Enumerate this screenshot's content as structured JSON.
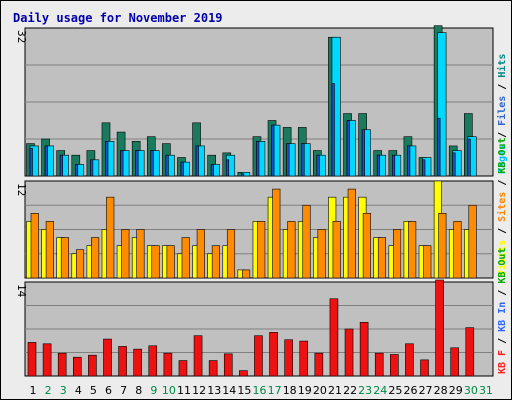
{
  "chart_data": {
    "type": "bar",
    "title": "Daily usage for November 2019",
    "categories": [
      "1",
      "2",
      "3",
      "4",
      "5",
      "6",
      "7",
      "8",
      "9",
      "10",
      "11",
      "12",
      "13",
      "14",
      "15",
      "16",
      "17",
      "18",
      "19",
      "20",
      "21",
      "22",
      "23",
      "24",
      "25",
      "26",
      "27",
      "28",
      "29",
      "30",
      "31"
    ],
    "weekend_days": [
      "2",
      "3",
      "9",
      "10",
      "16",
      "17",
      "23",
      "24",
      "30",
      "31"
    ],
    "panels": [
      {
        "name": "top",
        "ymax": 32,
        "ymax_label": "32",
        "side_label_parts": [
          {
            "text": "Pages",
            "color": "#00bfff"
          },
          {
            "text": " / ",
            "color": "#000000"
          },
          {
            "text": "Files",
            "color": "#3366cc"
          },
          {
            "text": " / ",
            "color": "#000000"
          },
          {
            "text": "Hits",
            "color": "#008888"
          }
        ],
        "series": [
          {
            "name": "Hits",
            "color": "#1a7a5e",
            "values": [
              7,
              8,
              5.5,
              4.5,
              5.5,
              11.5,
              9.5,
              7.5,
              8.5,
              7,
              4,
              11.5,
              4.5,
              5,
              0.8,
              8.5,
              12,
              10.5,
              10.5,
              5.5,
              30,
              13.5,
              13.5,
              5.5,
              5.5,
              8.5,
              4,
              32.5,
              6.5,
              13.5,
              null
            ]
          },
          {
            "name": "Files",
            "color": "#1f4fcf",
            "values": [
              6,
              6.5,
              4.5,
              2.5,
              3.5,
              7.5,
              5.5,
              5.5,
              5.5,
              4.5,
              3,
              6.5,
              2.5,
              3.5,
              0.5,
              7.5,
              11,
              7,
              7,
              4.5,
              20,
              12,
              10,
              4.5,
              4.5,
              6.5,
              3.5,
              12.5,
              5,
              8,
              null
            ]
          },
          {
            "name": "Pages",
            "color": "#00d8ff",
            "values": [
              6.5,
              6.5,
              4.5,
              2.5,
              3.5,
              7.5,
              5.5,
              5.5,
              5.5,
              4.5,
              3,
              6.5,
              2.5,
              4.5,
              0.8,
              7.5,
              11,
              7,
              7,
              4.5,
              30,
              12,
              10,
              4.5,
              4.5,
              6.5,
              4,
              31,
              5.5,
              8.5,
              null
            ]
          }
        ]
      },
      {
        "name": "middle",
        "ymax": 12,
        "ymax_label": "12",
        "side_label_parts": [
          {
            "text": "Visits",
            "color": "#ffff00"
          },
          {
            "text": " / ",
            "color": "#000000"
          },
          {
            "text": "Sites",
            "color": "#ff8800"
          },
          {
            "text": " / ",
            "color": "#000000"
          },
          {
            "text": "KB Out",
            "color": "#00aa00"
          }
        ],
        "series": [
          {
            "name": "Visits",
            "color": "#ffff00",
            "values": [
              7,
              6,
              5,
              3,
              4,
              6,
              4,
              5,
              4,
              4,
              3,
              4,
              3,
              4,
              1,
              7,
              10,
              6,
              7,
              5,
              10,
              10,
              10,
              5,
              4,
              7,
              4,
              12,
              6,
              6,
              null
            ]
          },
          {
            "name": "Sites",
            "color": "#ff8c00",
            "values": [
              8,
              7,
              5,
              3.5,
              5,
              10,
              6,
              6,
              4,
              4,
              5,
              6,
              4,
              6,
              1,
              7,
              11,
              7,
              9,
              6,
              7,
              11,
              8,
              5,
              6,
              7,
              4,
              8,
              7,
              9,
              null
            ]
          }
        ]
      },
      {
        "name": "bottom",
        "ymax": 14,
        "ymax_label": "14",
        "side_label_parts": [
          {
            "text": "KB F",
            "color": "#ff2222"
          },
          {
            "text": " / ",
            "color": "#000000"
          },
          {
            "text": "KB In",
            "color": "#3366ff"
          },
          {
            "text": " / ",
            "color": "#000000"
          },
          {
            "text": "KB Out",
            "color": "#00aa00"
          }
        ],
        "series": [
          {
            "name": "KB F",
            "color": "#ee1111",
            "values": [
              5,
              4.8,
              3.4,
              2.8,
              3.1,
              5.5,
              4.4,
              4,
              4.5,
              3.4,
              2.3,
              6,
              2.3,
              3.3,
              0.8,
              6,
              6.5,
              5.4,
              5.2,
              3.4,
              11.5,
              7,
              8,
              3.4,
              3.2,
              4.8,
              2.4,
              14.3,
              4.2,
              7.2,
              null
            ]
          }
        ]
      }
    ]
  }
}
